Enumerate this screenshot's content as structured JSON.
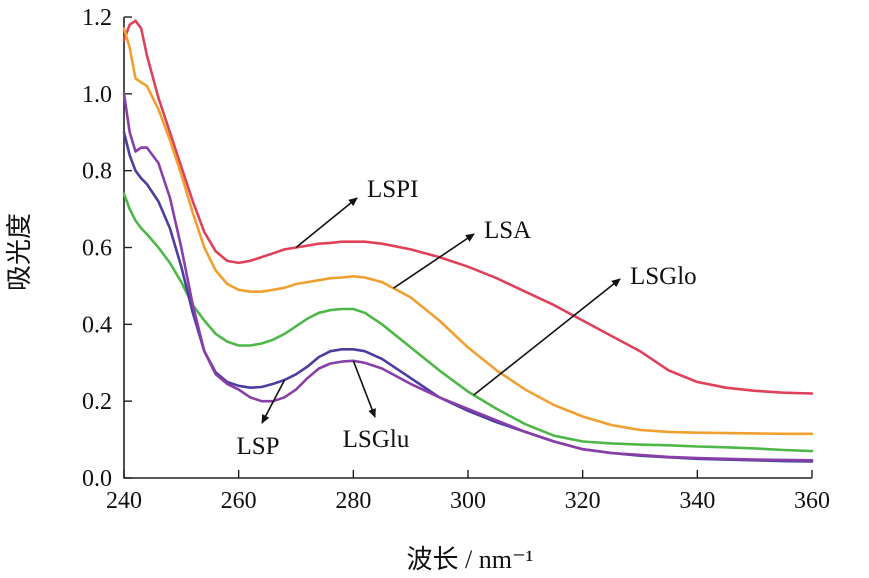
{
  "chart_data": {
    "type": "line",
    "xlabel": "波长 / nm⁻¹",
    "ylabel": "吸光度",
    "xlim": [
      240,
      360
    ],
    "ylim": [
      0.0,
      1.2
    ],
    "xticks": [
      "240",
      "260",
      "280",
      "300",
      "320",
      "340",
      "360"
    ],
    "yticks": [
      "0.0",
      "0.2",
      "0.4",
      "0.6",
      "0.8",
      "1.0",
      "1.2"
    ],
    "grid": false,
    "series": [
      {
        "name": "LSPI",
        "color": "#e0415a",
        "x": [
          240,
          241,
          242,
          243,
          244,
          246,
          248,
          250,
          252,
          254,
          256,
          258,
          260,
          262,
          264,
          266,
          268,
          270,
          272,
          274,
          276,
          278,
          280,
          282,
          285,
          290,
          295,
          300,
          305,
          310,
          315,
          320,
          325,
          330,
          335,
          340,
          345,
          350,
          355,
          360
        ],
        "y": [
          1.14,
          1.18,
          1.19,
          1.17,
          1.1,
          0.99,
          0.9,
          0.81,
          0.72,
          0.64,
          0.59,
          0.565,
          0.56,
          0.565,
          0.575,
          0.585,
          0.595,
          0.6,
          0.605,
          0.61,
          0.612,
          0.615,
          0.615,
          0.615,
          0.61,
          0.595,
          0.575,
          0.55,
          0.52,
          0.485,
          0.45,
          0.41,
          0.37,
          0.33,
          0.28,
          0.25,
          0.235,
          0.227,
          0.222,
          0.22
        ]
      },
      {
        "name": "LSA",
        "color": "#f0a030",
        "x": [
          240,
          241,
          242,
          243,
          244,
          246,
          248,
          250,
          252,
          254,
          256,
          258,
          260,
          262,
          264,
          266,
          268,
          270,
          272,
          274,
          276,
          278,
          280,
          282,
          285,
          290,
          295,
          300,
          305,
          310,
          315,
          320,
          325,
          330,
          335,
          340,
          345,
          350,
          355,
          360
        ],
        "y": [
          1.17,
          1.12,
          1.04,
          1.03,
          1.02,
          0.96,
          0.88,
          0.79,
          0.69,
          0.6,
          0.54,
          0.505,
          0.49,
          0.485,
          0.485,
          0.49,
          0.495,
          0.505,
          0.51,
          0.515,
          0.52,
          0.522,
          0.525,
          0.522,
          0.51,
          0.47,
          0.41,
          0.34,
          0.28,
          0.23,
          0.19,
          0.16,
          0.138,
          0.125,
          0.12,
          0.118,
          0.117,
          0.116,
          0.115,
          0.115
        ]
      },
      {
        "name": "LSGlo",
        "color": "#4db848",
        "x": [
          240,
          241,
          242,
          243,
          244,
          246,
          248,
          250,
          252,
          254,
          256,
          258,
          260,
          262,
          264,
          266,
          268,
          270,
          272,
          274,
          276,
          278,
          280,
          282,
          285,
          290,
          295,
          300,
          305,
          310,
          315,
          320,
          325,
          330,
          335,
          340,
          345,
          350,
          355,
          360
        ],
        "y": [
          0.74,
          0.7,
          0.67,
          0.65,
          0.635,
          0.6,
          0.56,
          0.51,
          0.45,
          0.41,
          0.375,
          0.355,
          0.345,
          0.345,
          0.35,
          0.36,
          0.375,
          0.395,
          0.415,
          0.43,
          0.437,
          0.44,
          0.44,
          0.43,
          0.4,
          0.34,
          0.28,
          0.225,
          0.18,
          0.14,
          0.11,
          0.095,
          0.09,
          0.087,
          0.085,
          0.082,
          0.08,
          0.077,
          0.073,
          0.07
        ]
      },
      {
        "name": "LSP",
        "color": "#4a3fa0",
        "x": [
          240,
          241,
          242,
          243,
          244,
          246,
          248,
          250,
          252,
          254,
          256,
          258,
          260,
          262,
          264,
          266,
          268,
          270,
          272,
          274,
          276,
          278,
          280,
          282,
          285,
          290,
          295,
          300,
          305,
          310,
          315,
          320,
          325,
          330,
          335,
          340,
          345,
          350,
          355,
          360
        ],
        "y": [
          0.9,
          0.84,
          0.8,
          0.78,
          0.765,
          0.72,
          0.65,
          0.55,
          0.43,
          0.33,
          0.275,
          0.25,
          0.24,
          0.235,
          0.237,
          0.245,
          0.255,
          0.27,
          0.29,
          0.315,
          0.33,
          0.335,
          0.335,
          0.33,
          0.31,
          0.26,
          0.21,
          0.175,
          0.145,
          0.12,
          0.095,
          0.075,
          0.065,
          0.058,
          0.054,
          0.05,
          0.048,
          0.046,
          0.044,
          0.043
        ]
      },
      {
        "name": "LSGlu",
        "color": "#8a3fa8",
        "x": [
          240,
          241,
          242,
          243,
          244,
          246,
          248,
          250,
          252,
          254,
          256,
          258,
          260,
          262,
          264,
          266,
          268,
          270,
          272,
          274,
          276,
          278,
          280,
          282,
          285,
          290,
          295,
          300,
          305,
          310,
          315,
          320,
          325,
          330,
          335,
          340,
          345,
          350,
          355,
          360
        ],
        "y": [
          1.0,
          0.9,
          0.85,
          0.86,
          0.86,
          0.82,
          0.73,
          0.6,
          0.45,
          0.33,
          0.27,
          0.245,
          0.23,
          0.21,
          0.2,
          0.2,
          0.21,
          0.23,
          0.26,
          0.285,
          0.298,
          0.303,
          0.305,
          0.3,
          0.285,
          0.245,
          0.21,
          0.18,
          0.15,
          0.12,
          0.095,
          0.075,
          0.065,
          0.06,
          0.055,
          0.052,
          0.05,
          0.048,
          0.047,
          0.046
        ]
      }
    ],
    "annotations": [
      {
        "label": "LSPI",
        "series": "LSPI",
        "point_x": 270,
        "label_anchor": "above-right"
      },
      {
        "label": "LSA",
        "series": "LSA",
        "point_x": 287,
        "label_anchor": "above-right"
      },
      {
        "label": "LSGlo",
        "series": "LSGlo",
        "point_x": 301,
        "label_anchor": "above-right"
      },
      {
        "label": "LSP",
        "series": "LSP",
        "point_x": 268,
        "label_anchor": "below-left"
      },
      {
        "label": "LSGlu",
        "series": "LSGlu",
        "point_x": 280,
        "label_anchor": "below"
      }
    ]
  }
}
